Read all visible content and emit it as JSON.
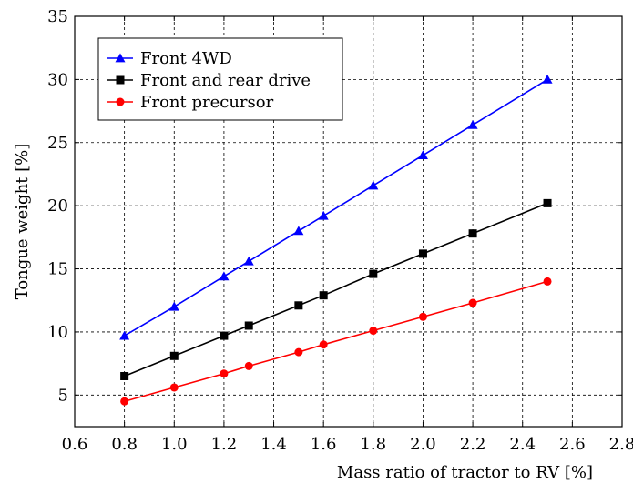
{
  "chart_data": {
    "type": "line",
    "xlabel": "Mass ratio of tractor to RV [%]",
    "ylabel": "Tongue weight [%]",
    "xlim": [
      0.6,
      2.8
    ],
    "ylim": [
      2.5,
      35
    ],
    "xticks": [
      0.6,
      0.8,
      1.0,
      1.2,
      1.4,
      1.6,
      1.8,
      2.0,
      2.2,
      2.4,
      2.6,
      2.8
    ],
    "xtick_labels": [
      "0.6",
      "0.8",
      "1.0",
      "1.2",
      "1.4",
      "1.6",
      "1.8",
      "2.0",
      "2.2",
      "2.4",
      "2.6",
      "2.8"
    ],
    "yticks": [
      5,
      10,
      15,
      20,
      25,
      30,
      35
    ],
    "ytick_labels": [
      "5",
      "10",
      "15",
      "20",
      "25",
      "30",
      "35"
    ],
    "grid": true,
    "legend_position": "top-left",
    "series": [
      {
        "name": "Front 4WD",
        "color": "#0000ff",
        "marker": "triangle",
        "x": [
          0.8,
          1.0,
          1.2,
          1.3,
          1.5,
          1.6,
          1.8,
          2.0,
          2.2,
          2.5
        ],
        "y": [
          9.7,
          12.0,
          14.4,
          15.6,
          18.0,
          19.2,
          21.6,
          24.0,
          26.4,
          30.0
        ]
      },
      {
        "name": "Front and rear drive",
        "color": "#000000",
        "marker": "square",
        "x": [
          0.8,
          1.0,
          1.2,
          1.3,
          1.5,
          1.6,
          1.8,
          2.0,
          2.2,
          2.5
        ],
        "y": [
          6.5,
          8.1,
          9.7,
          10.5,
          12.1,
          12.9,
          14.6,
          16.2,
          17.8,
          20.2
        ]
      },
      {
        "name": "Front precursor",
        "color": "#ff0000",
        "marker": "circle",
        "x": [
          0.8,
          1.0,
          1.2,
          1.3,
          1.5,
          1.6,
          1.8,
          2.0,
          2.2,
          2.5
        ],
        "y": [
          4.5,
          5.6,
          6.7,
          7.3,
          8.4,
          9.0,
          10.1,
          11.2,
          12.3,
          14.0
        ]
      }
    ]
  }
}
